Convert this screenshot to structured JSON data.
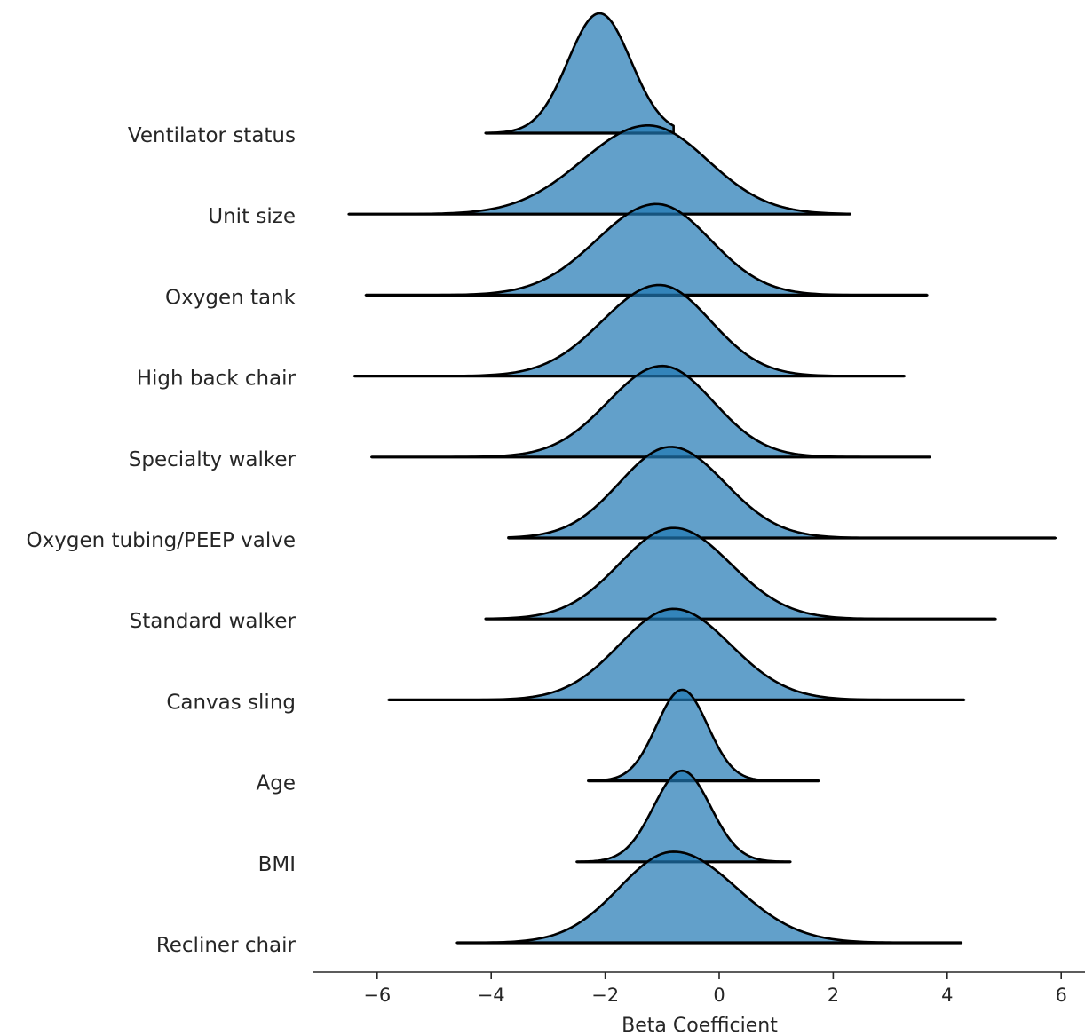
{
  "chart_data": {
    "type": "ridgeline",
    "title": "",
    "xlabel": "Beta Coefficient",
    "ylabel": "",
    "xlim": [
      -7.1,
      6.4
    ],
    "xticks": [
      -6,
      -4,
      -2,
      0,
      2,
      4,
      6
    ],
    "xtick_labels": [
      "−6",
      "−4",
      "−2",
      "0",
      "2",
      "4",
      "6"
    ],
    "color": "#1f77b4",
    "edge_color": "#000000",
    "grid": false,
    "legend": "none",
    "series": [
      {
        "name": "Ventilator status",
        "mode": -2.1,
        "sd_left": 0.55,
        "sd_right": 0.55,
        "range": [
          -4.1,
          -0.8
        ],
        "peak": 1.0
      },
      {
        "name": "Unit size",
        "mode": -1.25,
        "sd_left": 1.15,
        "sd_right": 1.05,
        "range": [
          -6.5,
          2.3
        ],
        "peak": 0.74
      },
      {
        "name": "Oxygen tank",
        "mode": -1.1,
        "sd_left": 1.05,
        "sd_right": 0.95,
        "range": [
          -6.2,
          3.65
        ],
        "peak": 0.76
      },
      {
        "name": "High back chair",
        "mode": -1.05,
        "sd_left": 1.0,
        "sd_right": 0.9,
        "range": [
          -6.4,
          3.25
        ],
        "peak": 0.76
      },
      {
        "name": "Specialty walker",
        "mode": -1.0,
        "sd_left": 0.95,
        "sd_right": 0.9,
        "range": [
          -6.1,
          3.7
        ],
        "peak": 0.76
      },
      {
        "name": "Oxygen tubing/PEEP valve",
        "mode": -0.85,
        "sd_left": 0.9,
        "sd_right": 0.95,
        "range": [
          -3.7,
          5.9
        ],
        "peak": 0.76
      },
      {
        "name": "Standard walker",
        "mode": -0.8,
        "sd_left": 0.95,
        "sd_right": 1.0,
        "range": [
          -4.1,
          4.85
        ],
        "peak": 0.76
      },
      {
        "name": "Canvas sling",
        "mode": -0.8,
        "sd_left": 0.95,
        "sd_right": 1.0,
        "range": [
          -5.8,
          4.3
        ],
        "peak": 0.76
      },
      {
        "name": "Age",
        "mode": -0.65,
        "sd_left": 0.45,
        "sd_right": 0.45,
        "range": [
          -2.3,
          1.75
        ],
        "peak": 0.76
      },
      {
        "name": "BMI",
        "mode": -0.65,
        "sd_left": 0.5,
        "sd_right": 0.5,
        "range": [
          -2.5,
          1.25
        ],
        "peak": 0.76
      },
      {
        "name": "Recliner chair",
        "mode": -0.8,
        "sd_left": 0.95,
        "sd_right": 1.1,
        "range": [
          -4.6,
          4.25
        ],
        "peak": 0.76
      }
    ]
  }
}
